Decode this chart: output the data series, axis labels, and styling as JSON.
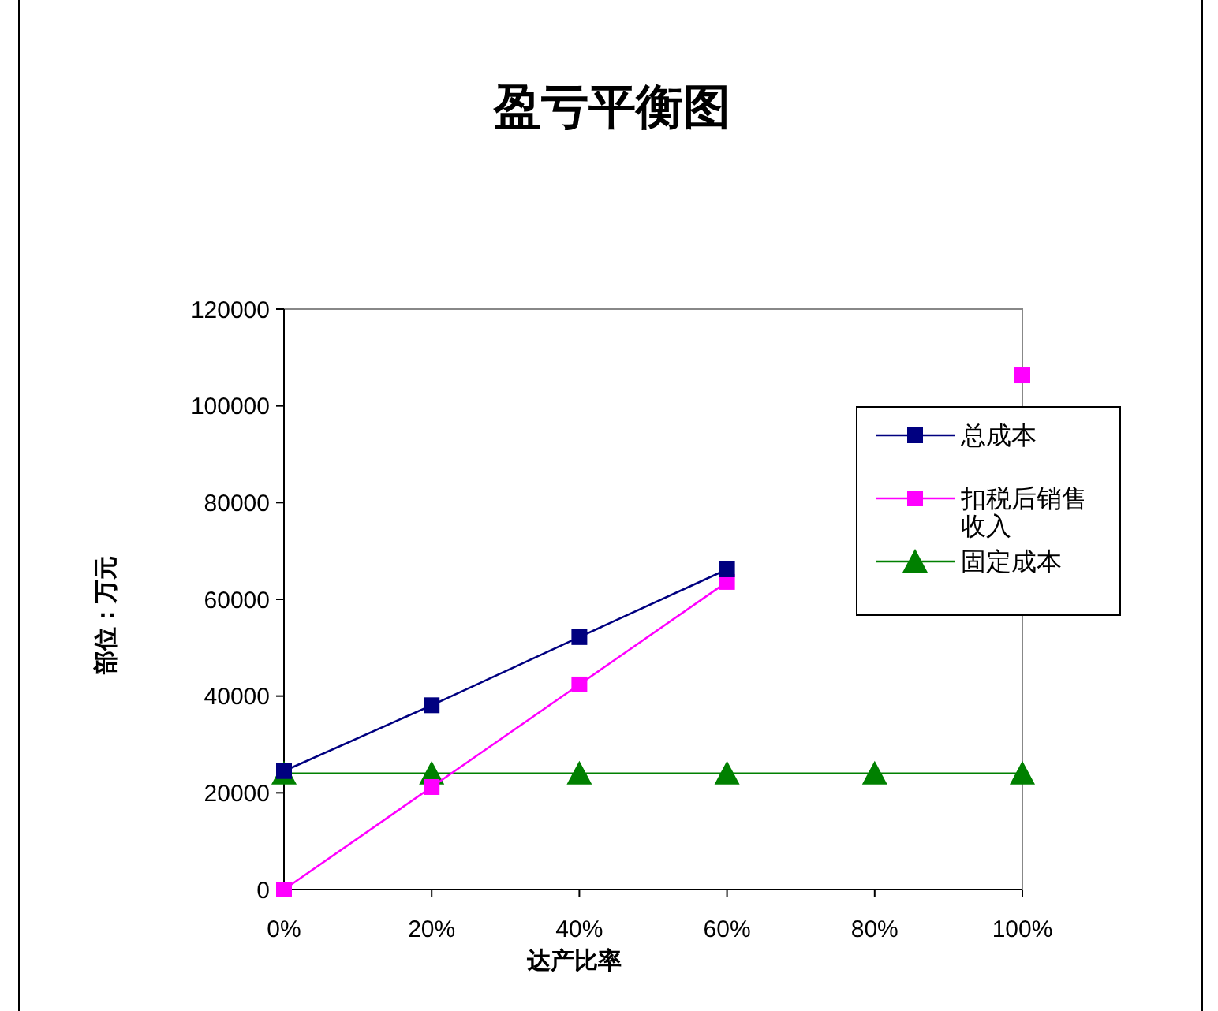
{
  "chart_data": {
    "type": "line",
    "title": "盈亏平衡图",
    "xlabel": "达产比率",
    "ylabel": "部位：万元",
    "categories": [
      "0%",
      "20%",
      "40%",
      "60%",
      "80%",
      "100%"
    ],
    "series": [
      {
        "name": "总成本",
        "color": "#000080",
        "marker": "square",
        "values": [
          24500,
          38100,
          52200,
          66200,
          null,
          null
        ]
      },
      {
        "name": "扣税后销售收入",
        "color": "#ff00ff",
        "marker": "square",
        "values": [
          0,
          21200,
          42400,
          63600,
          null,
          106300
        ]
      },
      {
        "name": "固定成本",
        "color": "#008000",
        "marker": "triangle",
        "values": [
          24000,
          24000,
          24000,
          24000,
          24000,
          24000
        ]
      }
    ],
    "ylim": [
      0,
      120000
    ],
    "yticks": [
      0,
      20000,
      40000,
      60000,
      80000,
      100000,
      120000
    ],
    "grid": false,
    "legend": "right"
  }
}
